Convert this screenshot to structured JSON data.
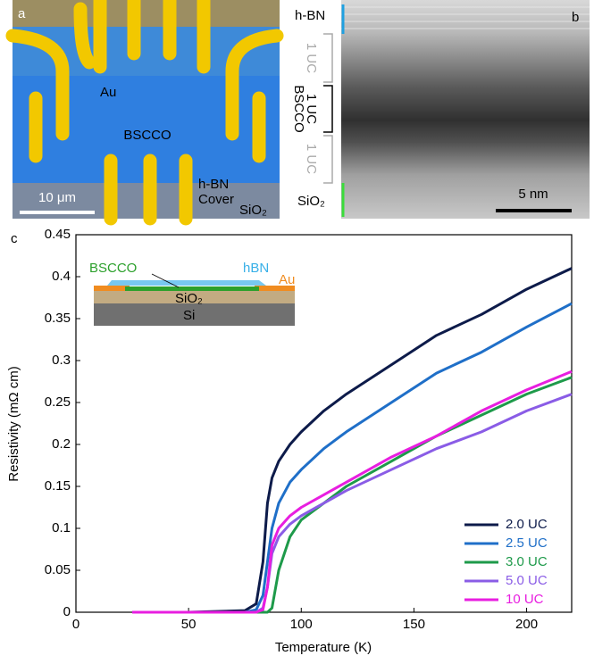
{
  "panel_a": {
    "letter": "a",
    "au": "Au",
    "bscco": "BSCCO",
    "cover1": "h-BN",
    "cover2": "Cover",
    "sio2": "SiO₂",
    "scale": "10 μm"
  },
  "panel_b": {
    "letter": "b",
    "hbn": "h-BN",
    "uc": [
      "1 UC",
      "1 UC",
      "1 UC"
    ],
    "bscco": "BSCCO",
    "sio2": "SiO₂",
    "scale": "5 nm"
  },
  "inset": {
    "bscco": "BSCCO",
    "hbn": "hBN",
    "au": "Au",
    "sio2": "SiO₂",
    "si": "Si"
  },
  "chart_data": {
    "type": "line",
    "panel": "c",
    "x_label": "Temperature (K)",
    "y_label": "Resistivity (mΩ cm)",
    "x": [
      25,
      50,
      75,
      80,
      83,
      85,
      87,
      90,
      95,
      100,
      110,
      120,
      140,
      160,
      180,
      200,
      220
    ],
    "series": [
      {
        "name": "2.0 UC",
        "color": "#0d1b4a",
        "values": [
          0,
          0,
          0.002,
          0.01,
          0.06,
          0.13,
          0.16,
          0.18,
          0.2,
          0.215,
          0.24,
          0.26,
          0.295,
          0.33,
          0.355,
          0.385,
          0.41
        ]
      },
      {
        "name": "2.5 UC",
        "color": "#1f6fc8",
        "values": [
          0,
          0,
          0,
          0.003,
          0.02,
          0.06,
          0.1,
          0.13,
          0.155,
          0.17,
          0.195,
          0.215,
          0.25,
          0.285,
          0.31,
          0.34,
          0.368
        ]
      },
      {
        "name": "3.0 UC",
        "color": "#1e9a4a",
        "values": [
          0,
          0,
          0,
          0,
          0,
          0,
          0.005,
          0.05,
          0.09,
          0.11,
          0.13,
          0.15,
          0.18,
          0.21,
          0.235,
          0.26,
          0.28
        ]
      },
      {
        "name": "5.0 UC",
        "color": "#8a5ce6",
        "values": [
          0,
          0,
          0,
          0,
          0.005,
          0.03,
          0.07,
          0.09,
          0.105,
          0.115,
          0.13,
          0.145,
          0.17,
          0.195,
          0.215,
          0.24,
          0.26
        ]
      },
      {
        "name": "10 UC",
        "color": "#e81ee0",
        "values": [
          0,
          0,
          0,
          0,
          0.003,
          0.03,
          0.08,
          0.1,
          0.115,
          0.125,
          0.14,
          0.155,
          0.185,
          0.21,
          0.24,
          0.265,
          0.287
        ]
      }
    ],
    "xlim": [
      0,
      220
    ],
    "xticks": [
      0,
      50,
      100,
      150,
      200
    ],
    "ylim": [
      0,
      0.45
    ],
    "yticks": [
      0,
      0.05,
      0.1,
      0.15,
      0.2,
      0.25,
      0.3,
      0.35,
      0.4,
      0.45
    ],
    "legend": "lower right"
  }
}
